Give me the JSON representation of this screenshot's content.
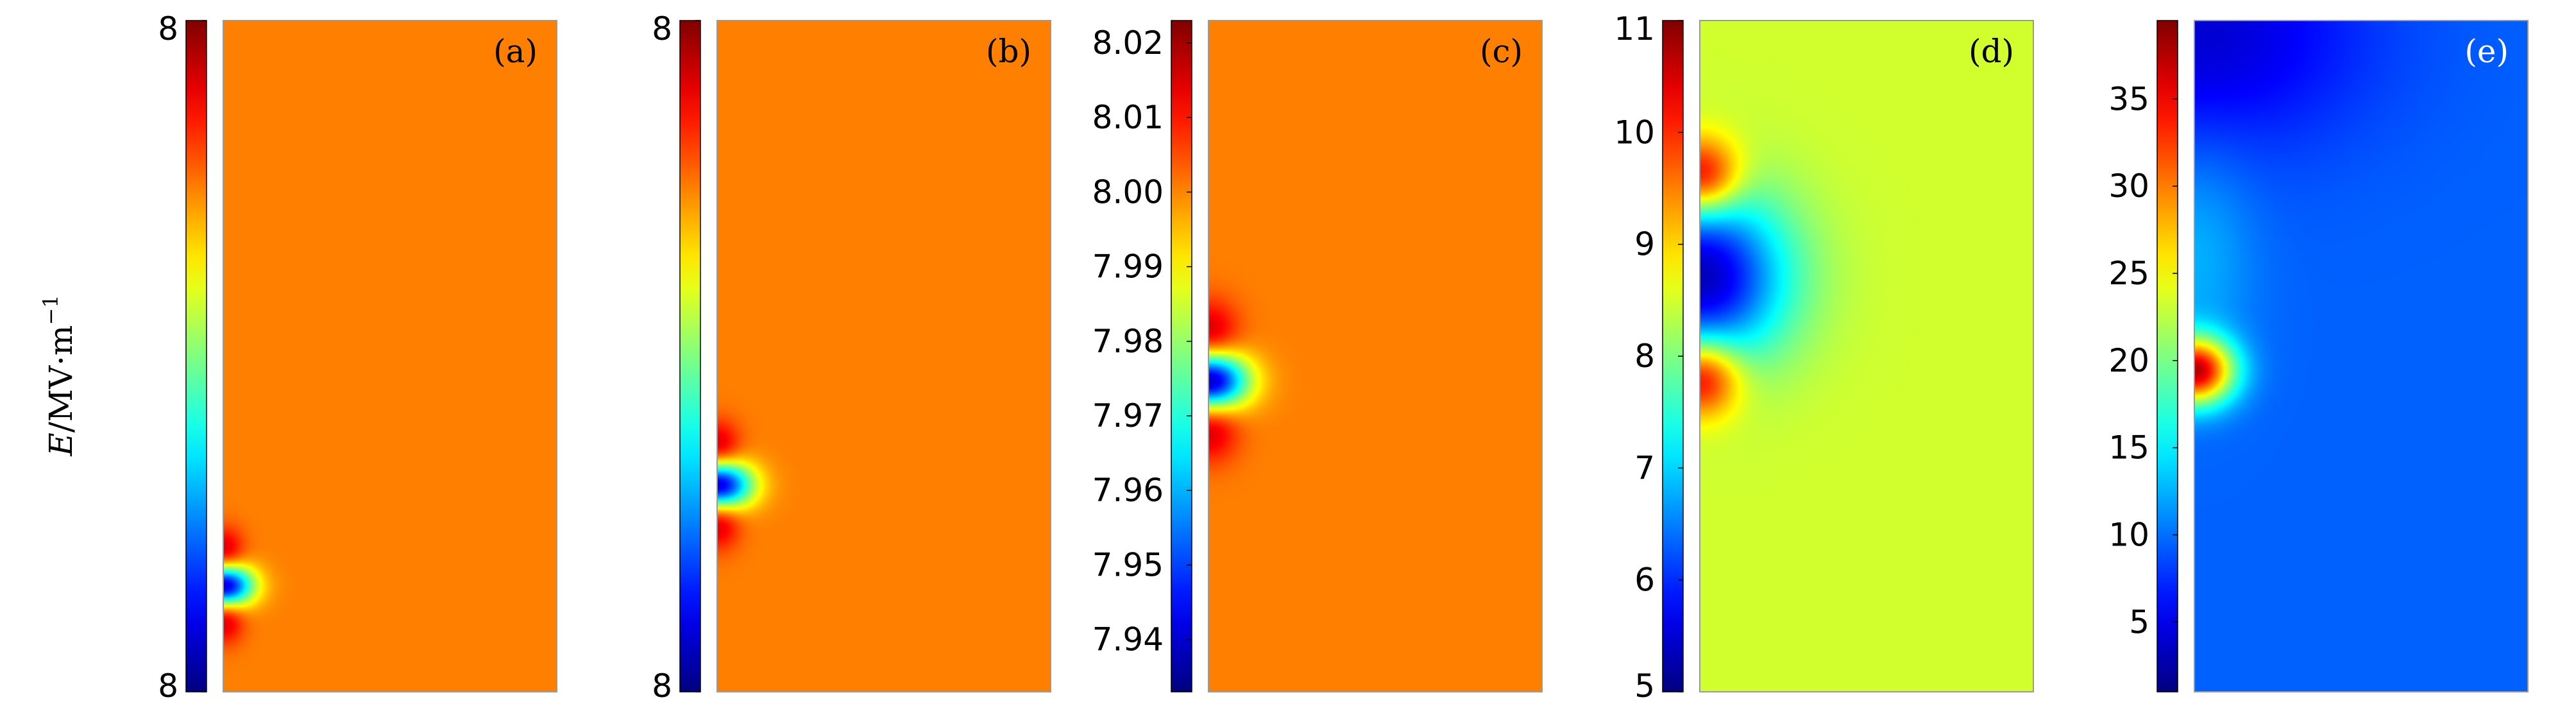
{
  "y_axis_label": {
    "variable": "E",
    "unit_text": "/MV·m",
    "exponent": "−1"
  },
  "colormap": "jet",
  "chart_data": [
    {
      "type": "heatmap",
      "panel_label": "(a)",
      "colorbar_ticks": [
        {
          "value": 0,
          "label": "8"
        },
        {
          "value": 1,
          "label": "8"
        }
      ],
      "colorbar_range": [
        0,
        1
      ],
      "background_level": 0.75,
      "features": [
        {
          "y": 0.84,
          "sx": 0.06,
          "sy": 0.022,
          "amp": -0.7
        },
        {
          "y": 0.79,
          "sx": 0.04,
          "sy": 0.025,
          "amp": 0.18
        },
        {
          "y": 0.89,
          "sx": 0.04,
          "sy": 0.025,
          "amp": 0.18
        }
      ],
      "label_color": "#000000"
    },
    {
      "type": "heatmap",
      "panel_label": "(b)",
      "colorbar_ticks": [
        {
          "value": 0,
          "label": "8"
        },
        {
          "value": 1,
          "label": "8"
        }
      ],
      "colorbar_range": [
        0,
        1
      ],
      "background_level": 0.75,
      "features": [
        {
          "y": 0.69,
          "sx": 0.07,
          "sy": 0.025,
          "amp": -0.7
        },
        {
          "y": 0.635,
          "sx": 0.045,
          "sy": 0.028,
          "amp": 0.18
        },
        {
          "y": 0.745,
          "sx": 0.045,
          "sy": 0.028,
          "amp": 0.18
        }
      ],
      "label_color": "#000000"
    },
    {
      "type": "heatmap",
      "panel_label": "(c)",
      "colorbar_ticks": [
        {
          "value": 7.94,
          "label": "7.94"
        },
        {
          "value": 7.95,
          "label": "7.95"
        },
        {
          "value": 7.96,
          "label": "7.96"
        },
        {
          "value": 7.97,
          "label": "7.97"
        },
        {
          "value": 7.98,
          "label": "7.98"
        },
        {
          "value": 7.99,
          "label": "7.99"
        },
        {
          "value": 8.0,
          "label": "8.00"
        },
        {
          "value": 8.01,
          "label": "8.01"
        },
        {
          "value": 8.02,
          "label": "8.02"
        }
      ],
      "colorbar_range": [
        7.933,
        8.023
      ],
      "background_level": 0.75,
      "features": [
        {
          "y": 0.535,
          "sx": 0.08,
          "sy": 0.03,
          "amp": -0.72
        },
        {
          "y": 0.465,
          "sx": 0.06,
          "sy": 0.035,
          "amp": 0.18
        },
        {
          "y": 0.605,
          "sx": 0.06,
          "sy": 0.035,
          "amp": 0.18
        }
      ],
      "label_color": "#000000"
    },
    {
      "type": "heatmap",
      "panel_label": "(d)",
      "colorbar_ticks": [
        {
          "value": 5,
          "label": "5"
        },
        {
          "value": 6,
          "label": "6"
        },
        {
          "value": 7,
          "label": "7"
        },
        {
          "value": 8,
          "label": "8"
        },
        {
          "value": 9,
          "label": "9"
        },
        {
          "value": 10,
          "label": "10"
        },
        {
          "value": 11,
          "label": "11"
        }
      ],
      "colorbar_range": [
        5,
        11
      ],
      "background_level": 0.58,
      "features": [
        {
          "y": 0.38,
          "sx": 0.18,
          "sy": 0.09,
          "amp": -0.52
        },
        {
          "y": 0.23,
          "sx": 0.08,
          "sy": 0.04,
          "amp": 0.38
        },
        {
          "y": 0.53,
          "sx": 0.08,
          "sy": 0.04,
          "amp": 0.38
        }
      ],
      "label_color": "#000000"
    },
    {
      "type": "heatmap",
      "panel_label": "(e)",
      "colorbar_ticks": [
        {
          "value": 5,
          "label": "5"
        },
        {
          "value": 10,
          "label": "10"
        },
        {
          "value": 15,
          "label": "15"
        },
        {
          "value": 20,
          "label": "20"
        },
        {
          "value": 25,
          "label": "25"
        },
        {
          "value": 30,
          "label": "30"
        },
        {
          "value": 35,
          "label": "35"
        }
      ],
      "colorbar_range": [
        1,
        39.5
      ],
      "background_level": 0.22,
      "features": [
        {
          "y": 0.52,
          "sx": 0.08,
          "sy": 0.035,
          "amp": 0.7
        },
        {
          "y": 0.35,
          "sx": 0.12,
          "sy": 0.12,
          "amp": 0.08
        },
        {
          "y": 0.02,
          "sx": 0.35,
          "sy": 0.12,
          "amp": -0.14
        }
      ],
      "label_color": "#ffffff"
    }
  ]
}
